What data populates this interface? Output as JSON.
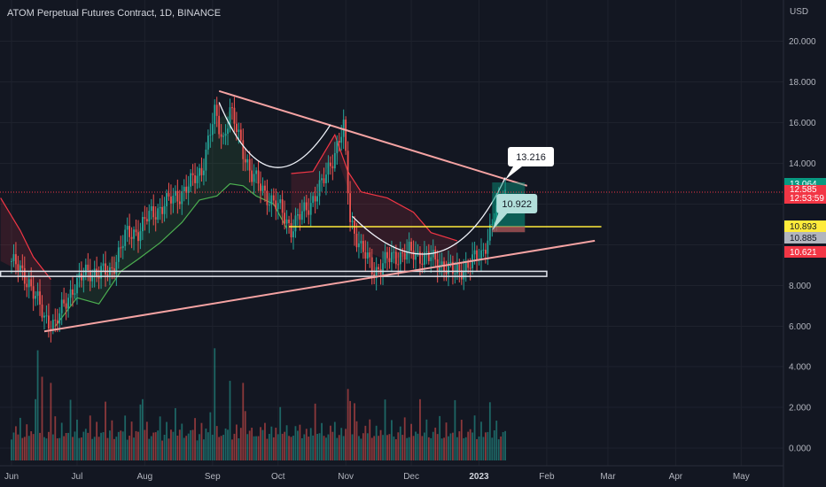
{
  "title": "ATOM Perpetual Futures Contract, 1D, BINANCE",
  "currency": "USD",
  "chart_data": {
    "type": "candlestick",
    "symbol": "ATOM Perpetual Futures Contract",
    "interval": "1D",
    "exchange": "BINANCE",
    "price_axis": {
      "unit": "USD",
      "ticks": [
        "20.000",
        "18.000",
        "16.000",
        "14.000",
        "8.000",
        "6.000",
        "4.000",
        "2.000",
        "0.000"
      ],
      "tick_values": [
        20,
        18,
        16,
        14,
        8,
        6,
        4,
        2,
        0
      ],
      "ylim": [
        -0.6,
        21.5
      ]
    },
    "time_axis": {
      "ticks": [
        "Jun",
        "Jul",
        "Aug",
        "Sep",
        "Oct",
        "Nov",
        "Dec",
        "2023",
        "Feb",
        "Mar",
        "Apr",
        "May"
      ],
      "tick_days": [
        0,
        30,
        61,
        92,
        122,
        153,
        183,
        214,
        245,
        273,
        304,
        334
      ],
      "start": "2022-06-01"
    },
    "price_labels": [
      {
        "text": "13.064",
        "price": 13.064,
        "color": "#089981",
        "fg": "#ffffff"
      },
      {
        "text": "12.585",
        "price": 12.585,
        "color": "#f23645",
        "fg": "#ffffff"
      },
      {
        "text": "12:53:59",
        "price": 12.585,
        "color": "#f23645",
        "fg": "#ffffff"
      },
      {
        "text": "10.893",
        "price": 10.893,
        "color": "#ffeb3b",
        "fg": "#131722"
      },
      {
        "text": "10.885",
        "price": 10.25,
        "color": "#b2b5be",
        "fg": "#131722"
      },
      {
        "text": "10.621",
        "price": 9.7,
        "color": "#f23645",
        "fg": "#ffffff"
      }
    ],
    "annotations": [
      {
        "text": "13.216",
        "price": 13.216
      },
      {
        "text": "10.922",
        "price": 10.922
      }
    ],
    "price_path": [
      [
        0,
        9.2
      ],
      [
        8,
        8.2
      ],
      [
        15,
        6.4
      ],
      [
        20,
        6.1
      ],
      [
        28,
        7.9
      ],
      [
        35,
        8.7
      ],
      [
        45,
        8.6
      ],
      [
        52,
        10.4
      ],
      [
        58,
        10.7
      ],
      [
        62,
        11.3
      ],
      [
        70,
        12.0
      ],
      [
        76,
        12.4
      ],
      [
        82,
        13.0
      ],
      [
        87,
        13.7
      ],
      [
        93,
        16.4
      ],
      [
        97,
        15.2
      ],
      [
        100,
        16.6
      ],
      [
        104,
        15.3
      ],
      [
        110,
        13.4
      ],
      [
        118,
        12.3
      ],
      [
        124,
        11.6
      ],
      [
        128,
        10.8
      ],
      [
        135,
        11.8
      ],
      [
        142,
        12.9
      ],
      [
        147,
        14.3
      ],
      [
        152,
        15.7
      ],
      [
        155,
        11.3
      ],
      [
        160,
        9.8
      ],
      [
        166,
        8.7
      ],
      [
        174,
        9.4
      ],
      [
        182,
        9.6
      ],
      [
        190,
        9.4
      ],
      [
        198,
        9.0
      ],
      [
        203,
        8.6
      ],
      [
        210,
        9.1
      ],
      [
        215,
        9.5
      ],
      [
        218,
        10.4
      ],
      [
        222,
        11.6
      ],
      [
        225,
        12.5
      ],
      [
        226,
        12.6
      ]
    ],
    "volume_pattern": [
      0.6,
      0.8,
      1.1,
      0.9,
      1.6,
      0.5,
      0.7,
      1.3,
      0.6,
      1.0,
      0.8,
      2.4,
      0.7,
      0.9,
      1.4,
      0.6
    ],
    "volume_spikes": [
      {
        "day": 12,
        "value": 4.8
      },
      {
        "day": 14,
        "value": 3.5
      },
      {
        "day": 18,
        "value": 3.2
      },
      {
        "day": 60,
        "value": 2.4
      },
      {
        "day": 93,
        "value": 4.9
      },
      {
        "day": 100,
        "value": 3.3
      },
      {
        "day": 106,
        "value": 3.2
      },
      {
        "day": 154,
        "value": 2.9
      },
      {
        "day": 157,
        "value": 2.2
      }
    ],
    "trendlines": [
      {
        "name": "descending-resistance",
        "from": [
          95,
          17.55
        ],
        "to": [
          236,
          12.9
        ],
        "color": "#f5a3a3"
      },
      {
        "name": "ascending-support",
        "from": [
          15,
          5.75
        ],
        "to": [
          267,
          10.2
        ],
        "color": "#f5a3a3"
      },
      {
        "name": "neckline",
        "from": [
          127,
          10.89
        ],
        "to": [
          270,
          10.89
        ],
        "color": "#ffeb3b"
      }
    ],
    "support_zone": {
      "from_day": -5,
      "to_day": 245,
      "low": 8.45,
      "high": 8.7
    },
    "cup_curves": [
      {
        "name": "left-cup",
        "points": [
          [
            95,
            17.0
          ],
          [
            118,
            11.2
          ],
          [
            146,
            15.9
          ]
        ]
      },
      {
        "name": "right-cup",
        "points": [
          [
            156,
            11.4
          ],
          [
            198,
            6.9
          ],
          [
            226,
            13.3
          ]
        ]
      }
    ],
    "position": {
      "entry": 12.585,
      "target": 13.064,
      "stop": 10.621,
      "from_day": 220,
      "to_day": 235
    },
    "supertrend_up": [
      [
        20,
        6.0
      ],
      [
        30,
        7.4
      ],
      [
        40,
        7.1
      ],
      [
        50,
        8.7
      ],
      [
        58,
        9.3
      ],
      [
        68,
        10.1
      ],
      [
        78,
        11.1
      ],
      [
        86,
        12.2
      ],
      [
        94,
        12.4
      ],
      [
        100,
        13.0
      ],
      [
        106,
        12.9
      ],
      [
        112,
        12.4
      ],
      [
        120,
        12.0
      ],
      [
        126,
        10.8
      ]
    ],
    "supertrend_down": [
      [
        -5,
        12.3
      ],
      [
        4,
        10.7
      ],
      [
        10,
        9.4
      ],
      [
        18,
        8.3
      ],
      [
        128,
        13.5
      ],
      [
        138,
        13.6
      ],
      [
        148,
        15.4
      ],
      [
        154,
        13.6
      ],
      [
        160,
        12.6
      ],
      [
        172,
        12.3
      ],
      [
        184,
        11.6
      ],
      [
        192,
        10.6
      ],
      [
        204,
        10.2
      ]
    ]
  }
}
